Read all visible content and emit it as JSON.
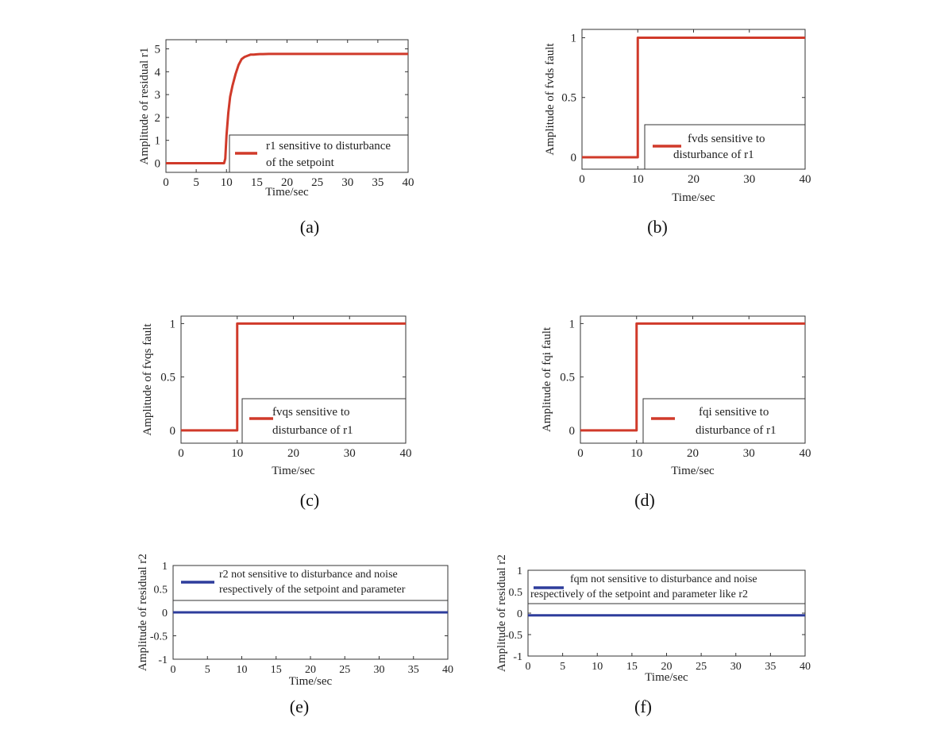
{
  "chart_data": [
    {
      "id": "a",
      "type": "line",
      "caption": "(a)",
      "xlabel": "Time/sec",
      "ylabel": "Amplitude of residual r1",
      "xlim": [
        0,
        40
      ],
      "ylim": [
        -0.4,
        5.4
      ],
      "xticks": [
        0,
        5,
        10,
        15,
        20,
        25,
        30,
        35,
        40
      ],
      "yticks": [
        0,
        1,
        2,
        3,
        4,
        5
      ],
      "xtick_labels": [
        "0",
        "5",
        "10",
        "15",
        "20",
        "25",
        "30",
        "35",
        "40"
      ],
      "ytick_labels": [
        "0",
        "1",
        "2",
        "3",
        "4",
        "5"
      ],
      "legend": [
        "r1 sensitive to disturbance",
        "of the setpoint"
      ],
      "series": [
        {
          "name": "r1 sensitive to disturbance of the setpoint",
          "color": "#d03a2a",
          "x": [
            0,
            9.6,
            9.8,
            10,
            10.3,
            10.6,
            11,
            11.5,
            12,
            12.5,
            13,
            13.5,
            14,
            14.5,
            15,
            15.5,
            16,
            17,
            18,
            40
          ],
          "y": [
            0,
            0,
            0.2,
            1.2,
            2.2,
            2.9,
            3.4,
            3.9,
            4.3,
            4.55,
            4.65,
            4.7,
            4.75,
            4.75,
            4.76,
            4.77,
            4.77,
            4.78,
            4.78,
            4.78
          ]
        }
      ]
    },
    {
      "id": "b",
      "type": "line",
      "caption": "(b)",
      "xlabel": "Time/sec",
      "ylabel": "Amplitude of fvds fault",
      "xlim": [
        0,
        40
      ],
      "ylim": [
        -0.1,
        1.07
      ],
      "xticks": [
        0,
        10,
        20,
        30,
        40
      ],
      "yticks": [
        0,
        0.5,
        1
      ],
      "xtick_labels": [
        "0",
        "10",
        "20",
        "30",
        "40"
      ],
      "ytick_labels": [
        "0",
        "0.5",
        "1"
      ],
      "legend": [
        "fvds sensitive to",
        "disturbance of r1"
      ],
      "series": [
        {
          "name": "fvds sensitive to disturbance of r1",
          "color": "#d03a2a",
          "x": [
            0,
            10,
            10,
            40
          ],
          "y": [
            0,
            0,
            1,
            1
          ]
        }
      ]
    },
    {
      "id": "c",
      "type": "line",
      "caption": "(c)",
      "xlabel": "Time/sec",
      "ylabel": "Amplitude of fvqs fault",
      "xlim": [
        0,
        40
      ],
      "ylim": [
        -0.12,
        1.07
      ],
      "xticks": [
        0,
        10,
        20,
        30,
        40
      ],
      "yticks": [
        0,
        0.5,
        1
      ],
      "xtick_labels": [
        "0",
        "10",
        "20",
        "30",
        "40"
      ],
      "ytick_labels": [
        "0",
        "0.5",
        "1"
      ],
      "legend": [
        "fvqs sensitive to",
        "disturbance of r1"
      ],
      "series": [
        {
          "name": "fvqs sensitive to disturbance of r1",
          "color": "#d03a2a",
          "x": [
            0,
            10,
            10,
            40
          ],
          "y": [
            0,
            0,
            1,
            1
          ]
        }
      ]
    },
    {
      "id": "d",
      "type": "line",
      "caption": "(d)",
      "xlabel": "Time/sec",
      "ylabel": "Amplitude of fqi fault",
      "xlim": [
        0,
        40
      ],
      "ylim": [
        -0.12,
        1.07
      ],
      "xticks": [
        0,
        10,
        20,
        30,
        40
      ],
      "yticks": [
        0,
        0.5,
        1
      ],
      "xtick_labels": [
        "0",
        "10",
        "20",
        "30",
        "40"
      ],
      "ytick_labels": [
        "0",
        "0.5",
        "1"
      ],
      "legend": [
        "fqi sensitive to",
        "disturbance of r1"
      ],
      "series": [
        {
          "name": "fqi sensitive to disturbance of r1",
          "color": "#d03a2a",
          "x": [
            0,
            10,
            10,
            40
          ],
          "y": [
            0,
            0,
            1,
            1
          ]
        }
      ]
    },
    {
      "id": "e",
      "type": "line",
      "caption": "(e)",
      "xlabel": "Time/sec",
      "ylabel": "Amplitude of residual r2",
      "xlim": [
        0,
        40
      ],
      "ylim": [
        -1,
        1
      ],
      "xticks": [
        0,
        5,
        10,
        15,
        20,
        25,
        30,
        35,
        40
      ],
      "yticks": [
        -1,
        -0.5,
        0,
        0.5,
        1
      ],
      "xtick_labels": [
        "0",
        "5",
        "10",
        "15",
        "20",
        "25",
        "30",
        "35",
        "40"
      ],
      "ytick_labels": [
        "-1",
        "-0.5",
        "0",
        "0.5",
        "1"
      ],
      "legend": [
        "r2 not sensitive to disturbance and noise",
        "respectively of the setpoint and parameter"
      ],
      "series": [
        {
          "name": "r2 not sensitive to disturbance and noise respectively of the setpoint and parameter",
          "color": "#2e3d9c",
          "x": [
            0,
            40
          ],
          "y": [
            0,
            0
          ]
        }
      ]
    },
    {
      "id": "f",
      "type": "line",
      "caption": "(f)",
      "xlabel": "Time/sec",
      "ylabel": "Amplitude of residual r2",
      "xlim": [
        0,
        40
      ],
      "ylim": [
        -1,
        1
      ],
      "xticks": [
        0,
        5,
        10,
        15,
        20,
        25,
        30,
        35,
        40
      ],
      "yticks": [
        -1,
        -0.5,
        0,
        0.5,
        1
      ],
      "xtick_labels": [
        "0",
        "5",
        "10",
        "15",
        "20",
        "25",
        "30",
        "35",
        "40"
      ],
      "ytick_labels": [
        "-1",
        "-0.5",
        "0",
        "0.5",
        "1"
      ],
      "legend": [
        "fqm not sensitive to disturbance and noise",
        "respectively of the setpoint and parameter like r2"
      ],
      "series": [
        {
          "name": "fqm not sensitive to disturbance and noise respectively of the setpoint and parameter like r2",
          "color": "#2e3d9c",
          "x": [
            0,
            40
          ],
          "y": [
            -0.05,
            -0.05
          ]
        }
      ]
    }
  ]
}
